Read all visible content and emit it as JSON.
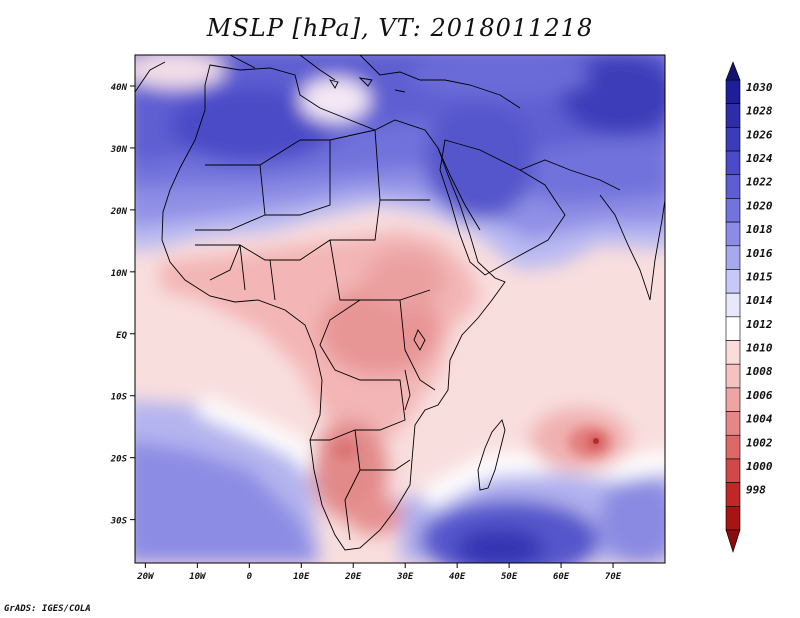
{
  "title": "MSLP [hPa], VT: 2018011218",
  "footer": "GrADS: IGES/COLA",
  "map": {
    "lat_labels": [
      "40N",
      "30N",
      "20N",
      "10N",
      "EQ",
      "10S",
      "20S",
      "30S"
    ],
    "lon_labels": [
      "20W",
      "10W",
      "0",
      "10E",
      "20E",
      "30E",
      "40E",
      "50E",
      "60E",
      "70E"
    ],
    "lon_range": [
      -22,
      80
    ],
    "lat_range": [
      -37,
      45
    ]
  },
  "colorbar": {
    "labels": [
      "1030",
      "1028",
      "1026",
      "1024",
      "1022",
      "1020",
      "1018",
      "1016",
      "1015",
      "1014",
      "1012",
      "1010",
      "1008",
      "1006",
      "1004",
      "1002",
      "1000",
      "998"
    ],
    "colors": [
      "#1e1e9a",
      "#2d2daa",
      "#3c3cba",
      "#4b4bc8",
      "#5e5ed2",
      "#7373dc",
      "#8c8ce4",
      "#a8a8ee",
      "#c8c8f6",
      "#e8e8fc",
      "#ffffff",
      "#fadcdc",
      "#f5c2c2",
      "#eea4a4",
      "#e68686",
      "#dc6868",
      "#d04848",
      "#c02828",
      "#a81414"
    ]
  }
}
